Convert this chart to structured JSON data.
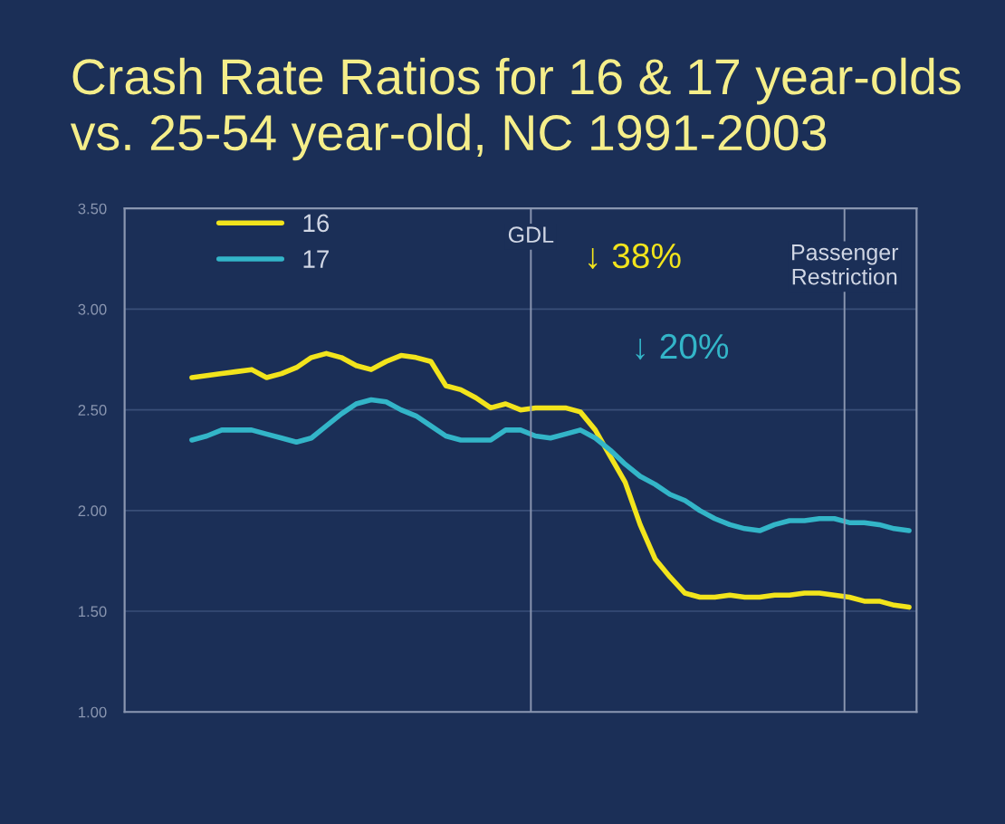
{
  "chart_data": {
    "type": "line",
    "title": "Crash Rate Ratios for 16 & 17 year-olds\nvs. 25-54 year-old, NC 1991-2003",
    "categories": [
      null,
      null,
      null,
      null,
      null,
      null,
      null,
      null,
      null,
      null,
      null,
      null,
      null,
      null,
      null,
      null,
      null,
      null,
      null,
      null,
      null,
      null,
      null,
      null,
      null,
      null,
      null,
      null,
      null,
      null,
      null,
      null,
      null,
      null,
      null,
      null,
      null,
      null,
      null,
      null,
      null,
      null,
      null,
      null,
      null,
      null,
      null,
      null,
      null,
      null,
      null,
      null,
      null
    ],
    "series": [
      {
        "name": "16",
        "color": "#f2e41c",
        "values": [
          null,
          null,
          null,
          null,
          2.66,
          2.67,
          2.68,
          2.69,
          2.7,
          2.66,
          2.68,
          2.71,
          2.76,
          2.78,
          2.76,
          2.72,
          2.7,
          2.74,
          2.77,
          2.76,
          2.74,
          2.62,
          2.6,
          2.56,
          2.51,
          2.53,
          2.5,
          2.51,
          2.51,
          2.51,
          2.49,
          2.4,
          2.27,
          2.14,
          1.93,
          1.76,
          1.67,
          1.59,
          1.57,
          1.57,
          1.58,
          1.57,
          1.57,
          1.58,
          1.58,
          1.59,
          1.59,
          1.58,
          1.57,
          1.55,
          1.55,
          1.53,
          1.52
        ]
      },
      {
        "name": "17",
        "color": "#33b5c8",
        "values": [
          null,
          null,
          null,
          null,
          2.35,
          2.37,
          2.4,
          2.4,
          2.4,
          2.38,
          2.36,
          2.34,
          2.36,
          2.42,
          2.48,
          2.53,
          2.55,
          2.54,
          2.5,
          2.47,
          2.42,
          2.37,
          2.35,
          2.35,
          2.35,
          2.4,
          2.4,
          2.37,
          2.36,
          2.38,
          2.4,
          2.36,
          2.3,
          2.23,
          2.17,
          2.13,
          2.08,
          2.05,
          2.0,
          1.96,
          1.93,
          1.91,
          1.9,
          1.93,
          1.95,
          1.95,
          1.96,
          1.96,
          1.94,
          1.94,
          1.93,
          1.91,
          1.9
        ]
      }
    ],
    "ylim": [
      1.0,
      3.5
    ],
    "yticks": [
      {
        "value": 1.0,
        "label": "1.00"
      },
      {
        "value": 1.5,
        "label": "1.50"
      },
      {
        "value": 2.0,
        "label": "2.00"
      },
      {
        "value": 2.5,
        "label": "2.50"
      },
      {
        "value": 3.0,
        "label": "3.00"
      },
      {
        "value": 3.5,
        "label": "3.50"
      }
    ],
    "annotations": [
      "↓ 38%",
      "↓ 20%",
      "GDL",
      "Passenger\nRestriction"
    ],
    "grid": "y",
    "legend": "top left",
    "tick_labels": "y",
    "marker": "none",
    "line_style": "solid"
  }
}
